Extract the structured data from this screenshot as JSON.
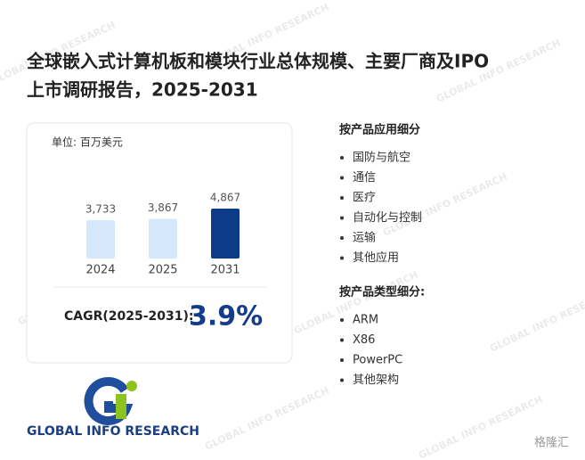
{
  "chart_data": {
    "type": "bar",
    "title": [
      "全球嵌入式计算机板和模块行业总体规模、主要厂商及IPO",
      "上市调研报告，2025-2031"
    ],
    "unit_label": "单位: 百万美元",
    "categories": [
      "2024",
      "2025",
      "2031"
    ],
    "values": [
      3733,
      3867,
      4867
    ],
    "value_labels": [
      "3,733",
      "3,867",
      "4,867"
    ],
    "colors": [
      "#d5e8fb",
      "#d5e8fb",
      "#0e3a8a"
    ],
    "cagr_label": "CAGR(2025-2031):",
    "cagr_value": "3.9%"
  },
  "segments": [
    {
      "title": "按产品应用细分",
      "items": [
        "国防与航空",
        "通信",
        "医疗",
        "自动化与控制",
        "运输",
        "其他应用"
      ]
    },
    {
      "title": "按产品类型细分:",
      "items": [
        "ARM",
        "X86",
        "PowerPC",
        "其他架构"
      ]
    }
  ],
  "logo": "GLOBAL INFO RESEARCH",
  "source": "格隆汇"
}
